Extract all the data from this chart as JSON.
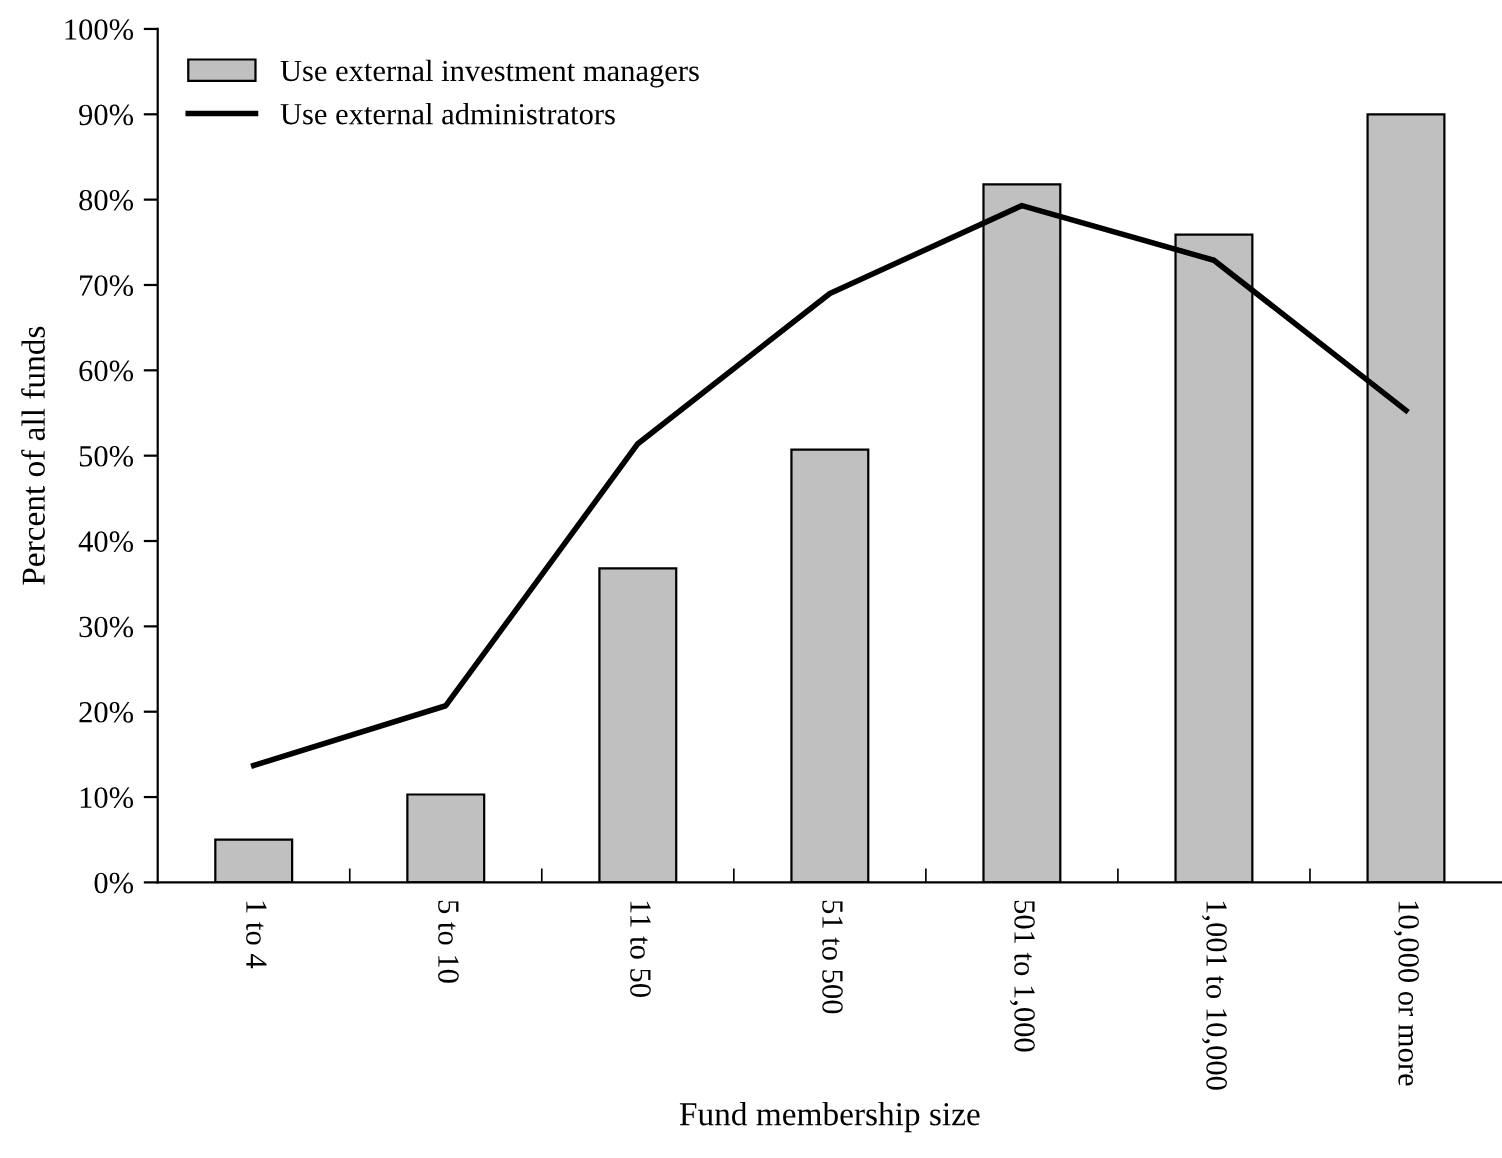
{
  "chart_data": {
    "type": "bar",
    "xlabel": "Fund membership size",
    "ylabel": "Percent of all funds",
    "categories": [
      "1 to 4",
      "5 to 10",
      "11 to 50",
      "51 to 500",
      "501 to 1,000",
      "1,001 to 10,000",
      "10,000 or more"
    ],
    "series": [
      {
        "name": "Use external investment managers",
        "color": "#c0c0c0",
        "values": [
          5.0,
          10.3,
          36.8,
          50.7,
          81.8,
          75.9,
          90.0
        ]
      },
      {
        "name": "Use external administrators",
        "type": "line",
        "color": "#000000",
        "values": [
          13.7,
          20.7,
          51.4,
          69.0,
          79.3,
          72.9,
          55.3
        ]
      }
    ],
    "ylim": [
      0,
      100
    ],
    "yticks": [
      {
        "value": 0,
        "label": "0%"
      },
      {
        "value": 10,
        "label": "10%"
      },
      {
        "value": 20,
        "label": "20%"
      },
      {
        "value": 30,
        "label": "30%"
      },
      {
        "value": 40,
        "label": "40%"
      },
      {
        "value": 50,
        "label": "50%"
      },
      {
        "value": 60,
        "label": "60%"
      },
      {
        "value": 70,
        "label": "70%"
      },
      {
        "value": 80,
        "label": "80%"
      },
      {
        "value": 90,
        "label": "90%"
      },
      {
        "value": 100,
        "label": "100%"
      }
    ],
    "grid": false,
    "legend": "top left",
    "marker": "none",
    "line_style": "solid"
  }
}
